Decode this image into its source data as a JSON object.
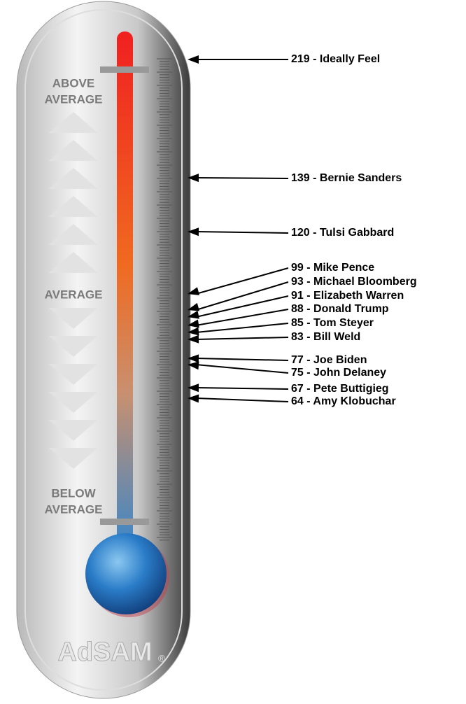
{
  "zones": {
    "above": [
      "ABOVE",
      "AVERAGE"
    ],
    "average": "AVERAGE",
    "below": [
      "BELOW",
      "AVERAGE"
    ]
  },
  "brand": "AdSAM",
  "registered": "®",
  "entries": [
    "219 - Ideally Feel",
    "139 - Bernie Sanders",
    "120 - Tulsi Gabbard",
    "99 - Mike Pence",
    "93 - Michael Bloomberg",
    "91 - Elizabeth Warren",
    "88 - Donald Trump",
    "85 - Tom Steyer",
    "83 - Bill Weld",
    "77 - Joe Biden",
    "75 - John Delaney",
    "67 - Pete Buttigieg",
    "64 - Amy Klobuchar"
  ]
}
